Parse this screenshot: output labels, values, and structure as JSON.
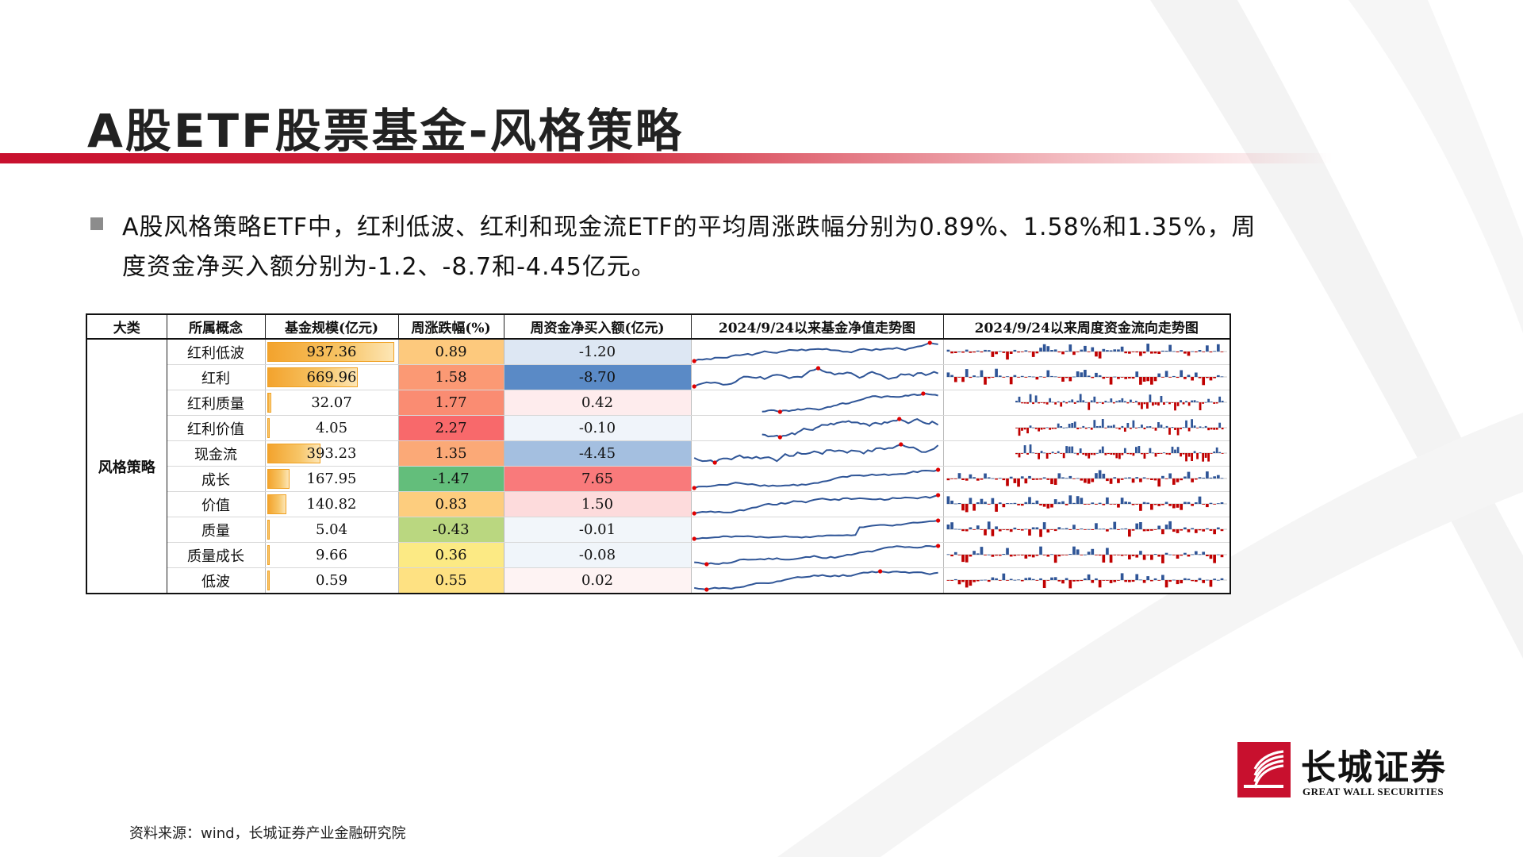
{
  "title": "A股ETF股票基金-风格策略",
  "summary": "A股风格策略ETF中，红利低波、红利和现金流ETF的平均周涨跌幅分别为0.89%、1.58%和1.35%，周度资金净买入额分别为-1.2、-8.7和-4.45亿元。",
  "table": {
    "headers": {
      "category": "大类",
      "concept": "所属概念",
      "scale": "基金规模(亿元)",
      "weekly_change": "周涨跌幅(%)",
      "net_buy": "周资金净买入额(亿元)",
      "nav_trend": "2024/9/24以来基金净值走势图",
      "flow_trend": "2024/9/24以来周度资金流向走势图"
    },
    "category": "风格策略",
    "rows": [
      {
        "concept": "红利低波",
        "scale": "937.36",
        "scale_num": 937.36,
        "change": "0.89",
        "change_num": 0.89,
        "net": "-1.20",
        "net_num": -1.2
      },
      {
        "concept": "红利",
        "scale": "669.96",
        "scale_num": 669.96,
        "change": "1.58",
        "change_num": 1.58,
        "net": "-8.70",
        "net_num": -8.7
      },
      {
        "concept": "红利质量",
        "scale": "32.07",
        "scale_num": 32.07,
        "change": "1.77",
        "change_num": 1.77,
        "net": "0.42",
        "net_num": 0.42
      },
      {
        "concept": "红利价值",
        "scale": "4.05",
        "scale_num": 4.05,
        "change": "2.27",
        "change_num": 2.27,
        "net": "-0.10",
        "net_num": -0.1
      },
      {
        "concept": "现金流",
        "scale": "393.23",
        "scale_num": 393.23,
        "change": "1.35",
        "change_num": 1.35,
        "net": "-4.45",
        "net_num": -4.45
      },
      {
        "concept": "成长",
        "scale": "167.95",
        "scale_num": 167.95,
        "change": "-1.47",
        "change_num": -1.47,
        "net": "7.65",
        "net_num": 7.65
      },
      {
        "concept": "价值",
        "scale": "140.82",
        "scale_num": 140.82,
        "change": "0.83",
        "change_num": 0.83,
        "net": "1.50",
        "net_num": 1.5
      },
      {
        "concept": "质量",
        "scale": "5.04",
        "scale_num": 5.04,
        "change": "-0.43",
        "change_num": -0.43,
        "net": "-0.01",
        "net_num": -0.01
      },
      {
        "concept": "质量成长",
        "scale": "9.66",
        "scale_num": 9.66,
        "change": "0.36",
        "change_num": 0.36,
        "net": "-0.08",
        "net_num": -0.08
      },
      {
        "concept": "低波",
        "scale": "0.59",
        "scale_num": 0.59,
        "change": "0.55",
        "change_num": 0.55,
        "net": "0.02",
        "net_num": 0.02
      }
    ]
  },
  "colors": {
    "brand_red": "#c8102e",
    "nav_line": "#2f5597",
    "flow_positive": "#2f5597",
    "flow_negative": "#c00000",
    "change_high": "#f8696b",
    "change_mid": "#ffeb84",
    "change_low": "#63be7b",
    "net_negative": "#5a8ac6",
    "net_positive": "#f8696b"
  },
  "source": "资料来源：wind，长城证券产业金融研究院",
  "logo": {
    "name_cn": "长城证券",
    "name_en": "GREAT WALL SECURITIES"
  }
}
